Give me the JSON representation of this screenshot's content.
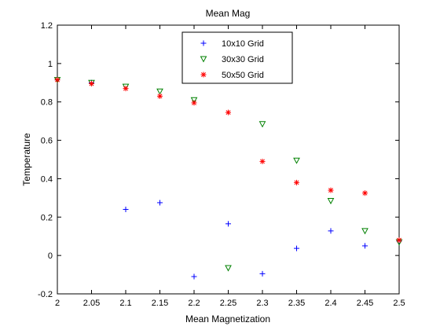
{
  "chart_data": {
    "type": "scatter",
    "title": "Mean Mag",
    "xlabel": "Mean Magnetization",
    "ylabel": "Temperature",
    "xlim": [
      2,
      2.5
    ],
    "ylim": [
      -0.2,
      1.2
    ],
    "x_ticks": [
      2,
      2.05,
      2.1,
      2.15,
      2.2,
      2.25,
      2.3,
      2.35,
      2.4,
      2.45,
      2.5
    ],
    "x_tick_labels": [
      "2",
      "2.05",
      "2.1",
      "2.15",
      "2.2",
      "2.25",
      "2.3",
      "2.35",
      "2.4",
      "2.45",
      "2.5"
    ],
    "y_ticks": [
      -0.2,
      0,
      0.2,
      0.4,
      0.6,
      0.8,
      1,
      1.2
    ],
    "y_tick_labels": [
      "-0.2",
      "0",
      "0.2",
      "0.4",
      "0.6",
      "0.8",
      "1",
      "1.2"
    ],
    "grid": false,
    "legend_position": "top-center",
    "series": [
      {
        "name": "10x10 Grid",
        "marker": "plus",
        "color": "#0000ff",
        "x": [
          2.0,
          2.05,
          2.1,
          2.15,
          2.2,
          2.25,
          2.3,
          2.35,
          2.4,
          2.45,
          2.5
        ],
        "y": [
          0.915,
          0.9,
          0.24,
          0.275,
          -0.11,
          0.165,
          -0.095,
          0.037,
          0.128,
          0.05,
          0.075
        ]
      },
      {
        "name": "30x30 Grid",
        "marker": "triangle-down",
        "color": "#008000",
        "x": [
          2.0,
          2.05,
          2.1,
          2.15,
          2.2,
          2.25,
          2.3,
          2.35,
          2.4,
          2.45,
          2.5
        ],
        "y": [
          0.915,
          0.9,
          0.88,
          0.855,
          0.81,
          -0.065,
          0.685,
          0.495,
          0.285,
          0.128,
          0.07
        ]
      },
      {
        "name": "50x50 Grid",
        "marker": "asterisk",
        "color": "#ff0000",
        "x": [
          2.0,
          2.05,
          2.1,
          2.15,
          2.2,
          2.25,
          2.3,
          2.35,
          2.4,
          2.45,
          2.5
        ],
        "y": [
          0.915,
          0.895,
          0.87,
          0.83,
          0.795,
          0.745,
          0.49,
          0.38,
          0.34,
          0.325,
          0.08
        ]
      }
    ]
  }
}
